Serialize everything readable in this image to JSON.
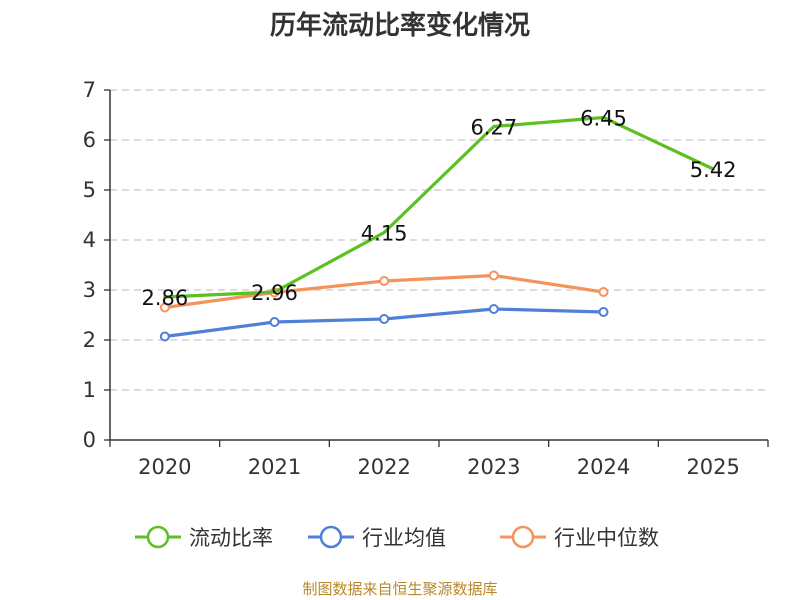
{
  "chart_data": {
    "type": "line",
    "title": "历年流动比率变化情况",
    "categories": [
      "2020",
      "2021",
      "2022",
      "2023",
      "2024",
      "2025"
    ],
    "ylim": [
      0,
      7
    ],
    "yticks": [
      "0",
      "1",
      "2",
      "3",
      "4",
      "5",
      "6",
      "7"
    ],
    "grid": true,
    "legend_position": "bottom",
    "series": [
      {
        "name": "流动比率",
        "color": "#5cc023",
        "values": [
          2.86,
          2.96,
          4.15,
          6.27,
          6.45,
          5.42
        ],
        "labels": [
          "2.86",
          "2.96",
          "4.15",
          "6.27",
          "6.45",
          "5.42"
        ],
        "show_markers": false
      },
      {
        "name": "行业均值",
        "color": "#4f7fd6",
        "values": [
          2.07,
          2.36,
          2.42,
          2.62,
          2.56,
          null
        ],
        "show_markers": true
      },
      {
        "name": "行业中位数",
        "color": "#f4935c",
        "values": [
          2.65,
          2.95,
          3.18,
          3.29,
          2.96,
          null
        ],
        "show_markers": true
      }
    ]
  },
  "footer": {
    "source": "制图数据来自恒生聚源数据库"
  }
}
